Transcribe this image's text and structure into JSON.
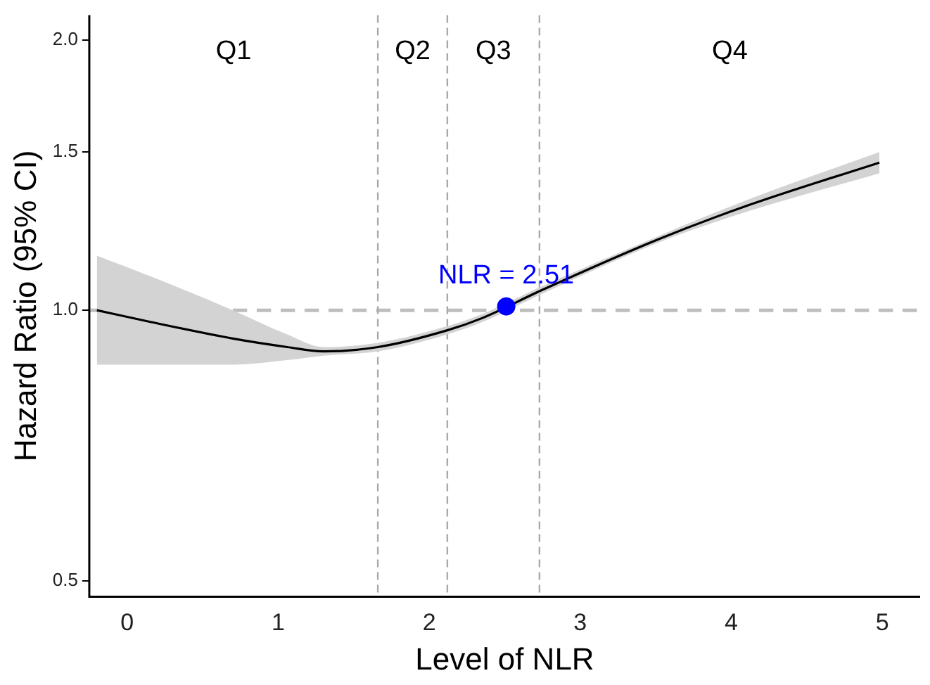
{
  "chart_data": {
    "type": "line",
    "xlabel": "Level of NLR",
    "ylabel": "Hazard Ratio (95% CI)",
    "xlim": [
      -0.25,
      5.25
    ],
    "xticks": [
      0,
      1,
      2,
      3,
      4,
      5
    ],
    "ylim": [
      0.48,
      2.13
    ],
    "yticks": [
      {
        "value": 0.5,
        "label": "0.5"
      },
      {
        "value": 1,
        "label": "1.0"
      },
      {
        "value": 1.5,
        "label": "1.5"
      },
      {
        "value": 2,
        "label": "2.0"
      }
    ],
    "log": "y",
    "grid": false,
    "legend": false,
    "series": [
      {
        "type": "line",
        "color": "#000000",
        "marker": "none",
        "x": [
          -0.2,
          0.16,
          0.7,
          1.06,
          1.3,
          1.66,
          2.12,
          2.35,
          2.73,
          3.52,
          4.12,
          4.98
        ],
        "values": [
          1.0,
          0.97,
          0.93,
          0.91,
          0.9,
          0.91,
          0.95,
          0.98,
          1.05,
          1.2,
          1.31,
          1.46
        ],
        "lower": [
          0.87,
          0.87,
          0.87,
          0.88,
          0.89,
          0.9,
          0.94,
          0.97,
          1.04,
          1.19,
          1.29,
          1.42
        ],
        "upper": [
          1.15,
          1.09,
          1.0,
          0.94,
          0.91,
          0.92,
          0.96,
          0.99,
          1.06,
          1.21,
          1.33,
          1.5
        ]
      },
      {
        "type": "scatter",
        "color": "#0000ff",
        "marker": "circle",
        "x": [
          2.51
        ],
        "values": [
          1.01
        ]
      }
    ],
    "ref_lines": [
      {
        "axis": "y",
        "value": 1,
        "color": "#bebebe",
        "line_style": "dashed"
      },
      {
        "axis": "x",
        "value": 1.66,
        "color": "#a9a9a9",
        "line_style": "dashed"
      },
      {
        "axis": "x",
        "value": 2.12,
        "color": "#a9a9a9",
        "line_style": "dashed"
      },
      {
        "axis": "x",
        "value": 2.73,
        "color": "#a9a9a9",
        "line_style": "dashed"
      }
    ],
    "annotations": [
      "Q1",
      "Q2",
      "Q3",
      "Q4",
      {
        "text": "NLR = 2.51",
        "x": 2.51,
        "y": 1.01
      }
    ]
  }
}
